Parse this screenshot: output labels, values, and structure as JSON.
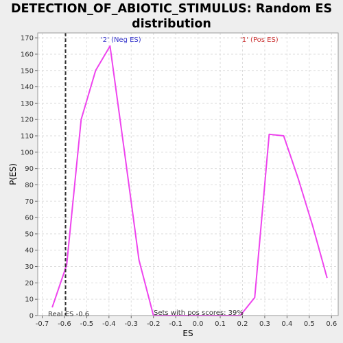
{
  "chart_data": {
    "type": "line",
    "title_line1": "DETECTION_OF_ABIOTIC_STIMULUS: Random ES",
    "title_line2": "distribution",
    "xlabel": "ES",
    "ylabel": "P(ES)",
    "xlim": [
      -0.72,
      0.63
    ],
    "ylim": [
      0,
      173
    ],
    "xticks": [
      -0.7,
      -0.6,
      -0.5,
      -0.4,
      -0.3,
      -0.2,
      -0.1,
      0.0,
      0.1,
      0.2,
      0.3,
      0.4,
      0.5,
      0.6
    ],
    "xtick_labels": [
      "-0.7",
      "-0.6",
      "-0.5",
      "-0.4",
      "-0.3",
      "-0.2",
      "-0.1",
      "0.0",
      "0.1",
      "0.2",
      "0.3",
      "0.4",
      "0.5",
      "0.6"
    ],
    "yticks": [
      0,
      10,
      20,
      30,
      40,
      50,
      60,
      70,
      80,
      90,
      100,
      110,
      120,
      130,
      140,
      150,
      160,
      170
    ],
    "grid": true,
    "series": [
      {
        "color": "#ee44ee",
        "x": [
          -0.655,
          -0.59,
          -0.525,
          -0.46,
          -0.395,
          -0.33,
          -0.265,
          -0.2,
          0.19,
          0.255,
          0.32,
          0.385,
          0.45,
          0.515,
          0.58
        ],
        "y": [
          5,
          31,
          120,
          150,
          165,
          100,
          34,
          0,
          0,
          11,
          111,
          110,
          84,
          55,
          23
        ]
      }
    ],
    "real_es": -0.595,
    "annotations": {
      "neg_label": "'2' (Neg ES)",
      "neg_color": "#3333cc",
      "pos_label": "'1' (Pos ES)",
      "pos_color": "#cc3333",
      "real_es_label": "Real ES -0.6",
      "pos_scores_label": "Sets with pos scores: 39%"
    }
  }
}
